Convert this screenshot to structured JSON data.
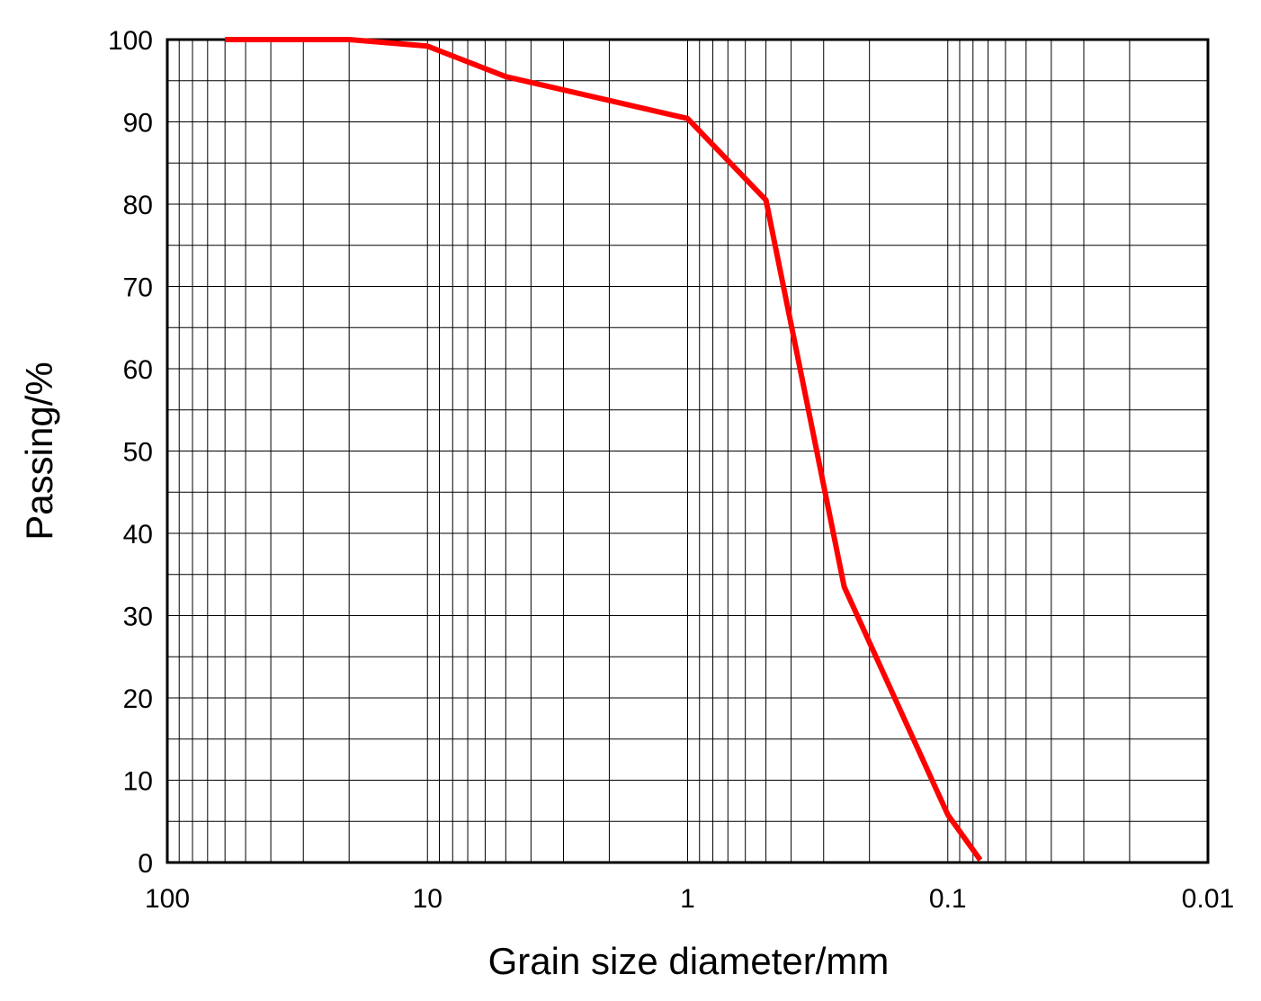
{
  "chart_data": {
    "type": "line",
    "title": "",
    "xlabel": "Grain size diameter/mm",
    "ylabel": "Passing/%",
    "x_scale": "log",
    "x_reversed": true,
    "xlim": [
      100,
      0.01
    ],
    "ylim": [
      0,
      100
    ],
    "x_ticks": [
      100,
      10,
      1,
      0.1,
      0.01
    ],
    "x_tick_labels": [
      "100",
      "10",
      "1",
      "0.1",
      "0.01"
    ],
    "y_ticks": [
      0,
      10,
      20,
      30,
      40,
      50,
      60,
      70,
      80,
      90,
      100
    ],
    "y_tick_labels": [
      "0",
      "10",
      "20",
      "30",
      "40",
      "50",
      "60",
      "70",
      "80",
      "90",
      "100"
    ],
    "grid": true,
    "series": [
      {
        "color": "#ff0000",
        "x": [
          60,
          20,
          10,
          5,
          1,
          0.5,
          0.25,
          0.1,
          0.075
        ],
        "y": [
          100,
          100,
          99.2,
          95.5,
          90.4,
          80.5,
          33.5,
          5.8,
          0.3
        ]
      }
    ]
  }
}
